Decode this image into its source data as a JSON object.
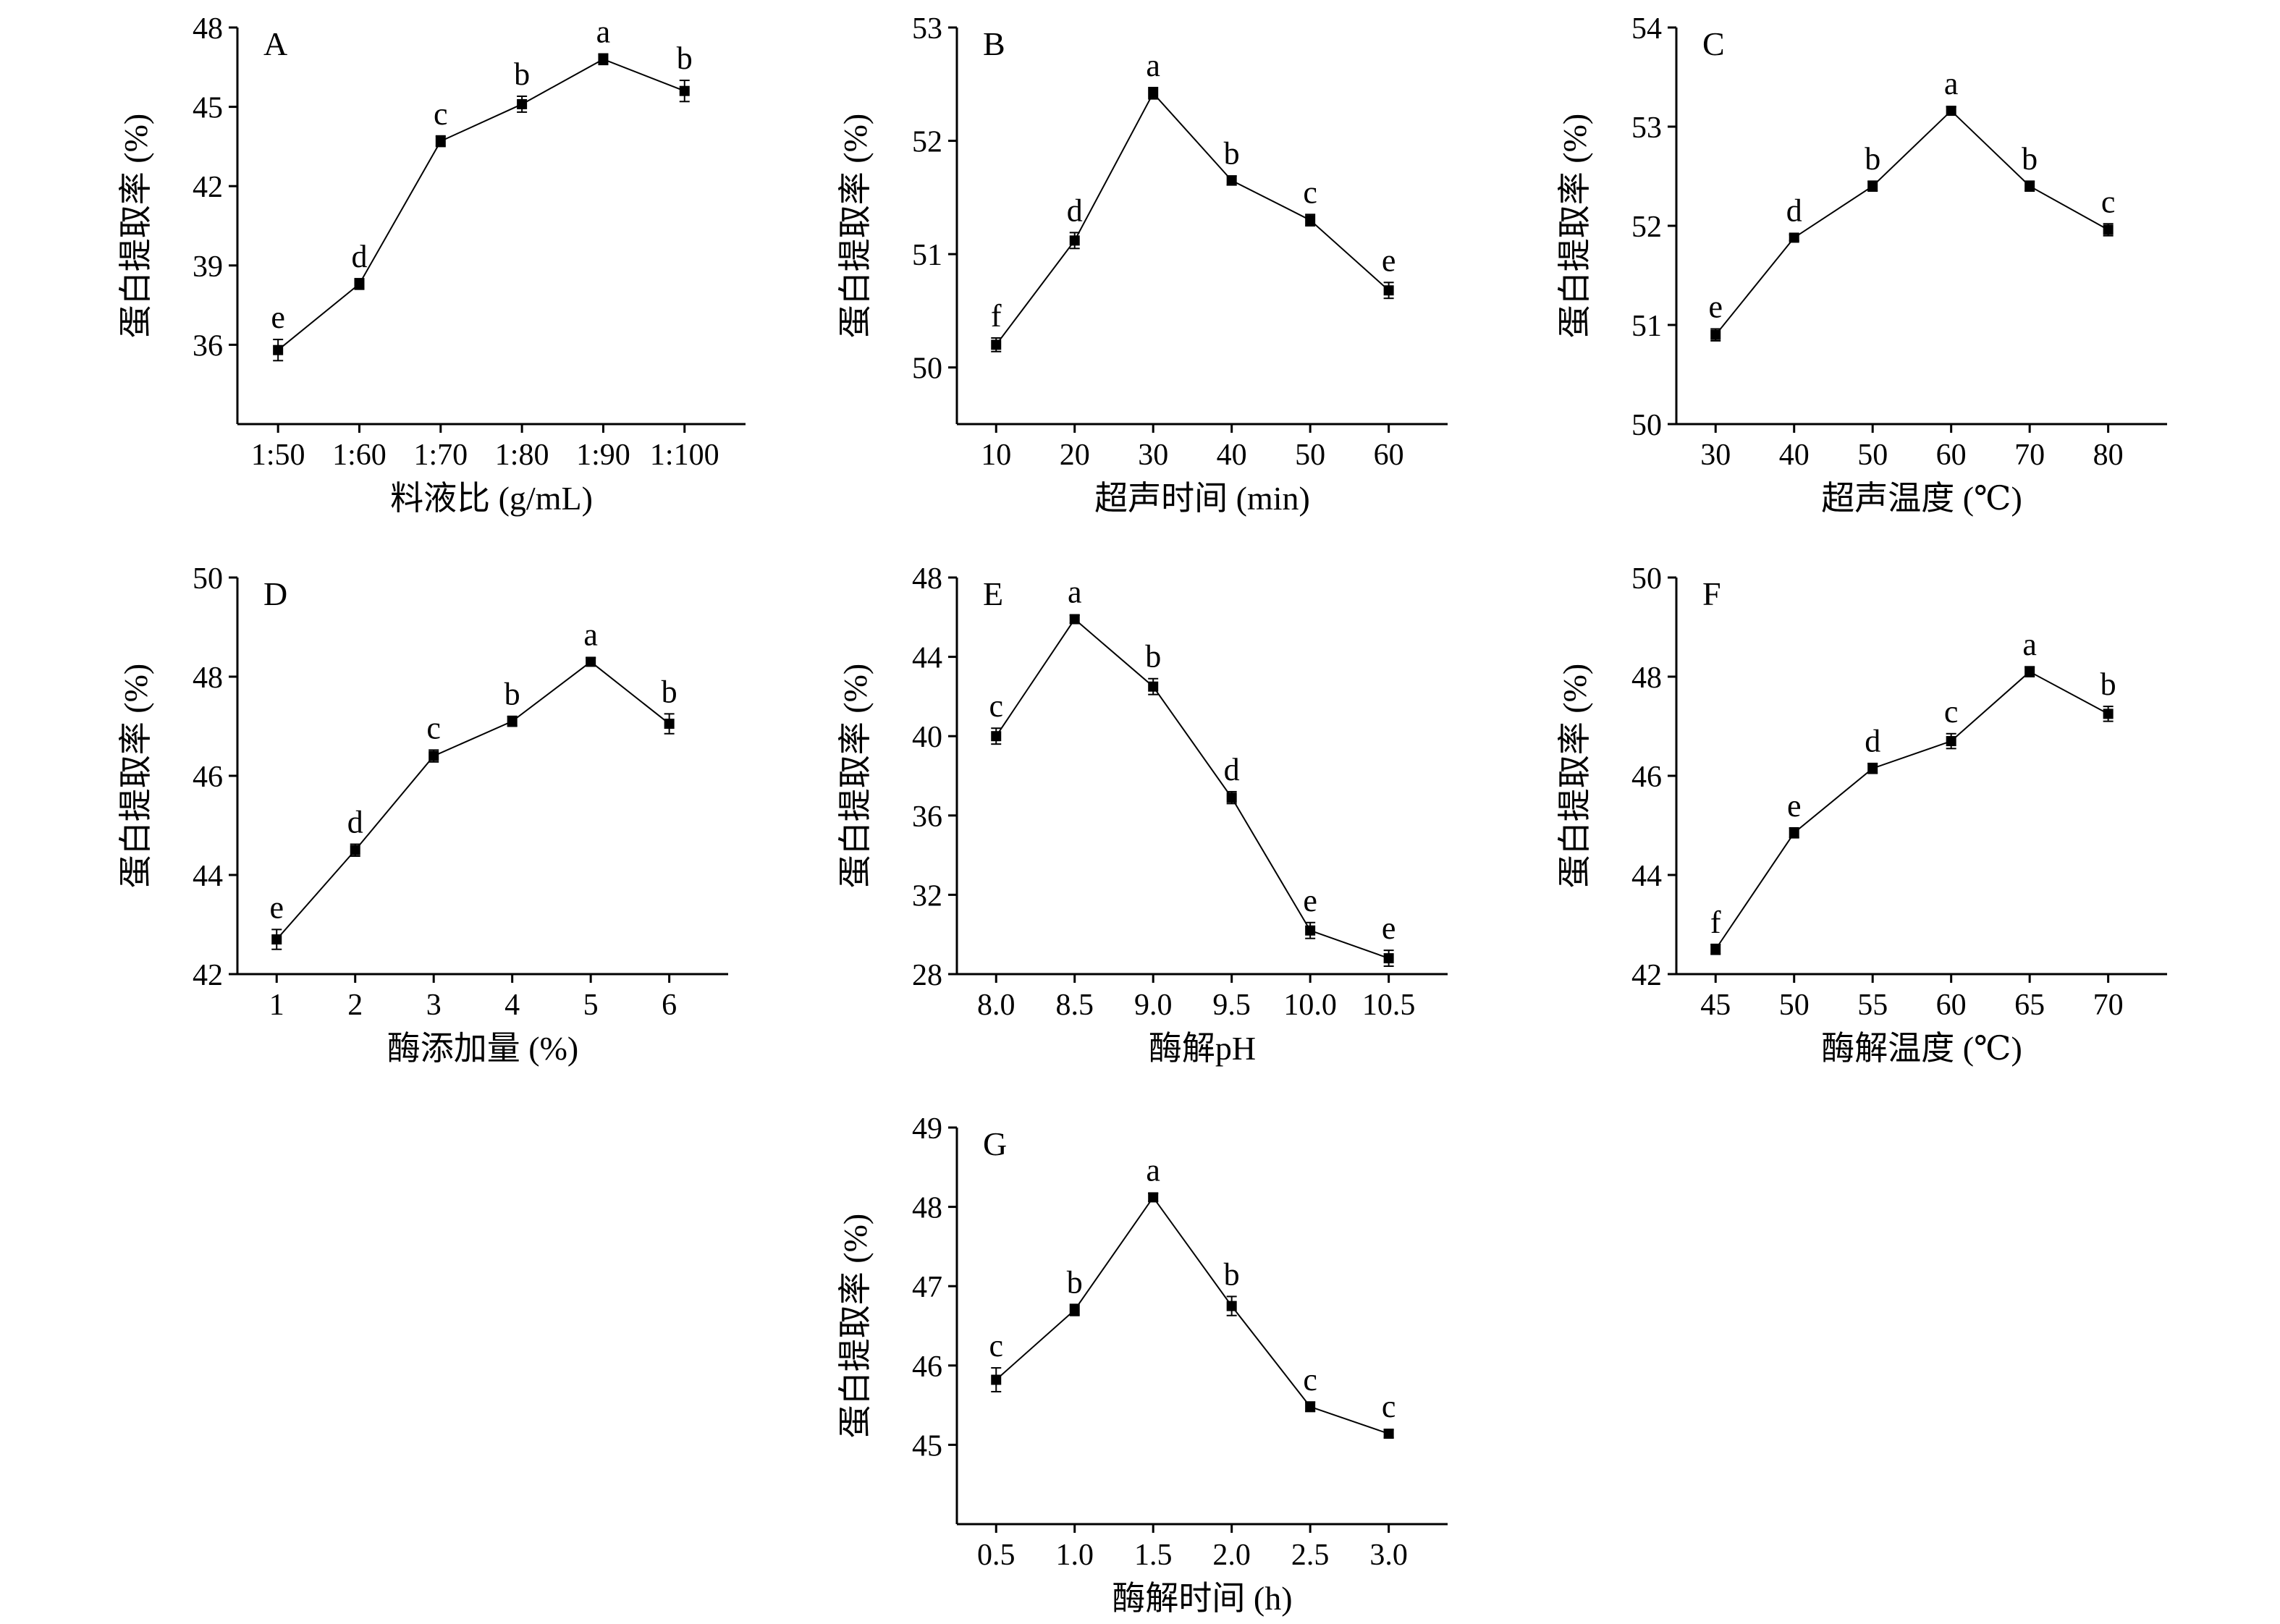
{
  "figure": {
    "ylabel": "蛋白提取率 (%)"
  },
  "chart_data": [
    {
      "type": "line",
      "panel": "A",
      "xlabel": "料液比 (g/mL)",
      "categories": [
        "1:50",
        "1:60",
        "1:70",
        "1:80",
        "1:90",
        "1:100"
      ],
      "values": [
        35.8,
        38.3,
        43.7,
        45.1,
        46.8,
        45.6
      ],
      "errors": [
        0.4,
        0.2,
        0.2,
        0.3,
        0.2,
        0.4
      ],
      "labels": [
        "e",
        "d",
        "c",
        "b",
        "a",
        "b"
      ],
      "ylim": [
        33,
        48
      ],
      "yticks": [
        36,
        39,
        42,
        45,
        48
      ],
      "grid": false
    },
    {
      "type": "line",
      "panel": "B",
      "xlabel": "超声时间 (min)",
      "categories": [
        "10",
        "20",
        "30",
        "40",
        "50",
        "60"
      ],
      "values": [
        50.2,
        51.12,
        52.42,
        51.65,
        51.3,
        50.68
      ],
      "errors": [
        0.06,
        0.07,
        0.05,
        0.04,
        0.05,
        0.07
      ],
      "labels": [
        "f",
        "d",
        "a",
        "b",
        "c",
        "e"
      ],
      "ylim": [
        49.5,
        53
      ],
      "yticks": [
        50,
        51,
        52,
        53
      ],
      "grid": false
    },
    {
      "type": "line",
      "panel": "C",
      "xlabel": "超声温度 (℃)",
      "categories": [
        "30",
        "40",
        "50",
        "60",
        "70",
        "80"
      ],
      "values": [
        50.9,
        51.88,
        52.4,
        53.16,
        52.4,
        51.96
      ],
      "errors": [
        0.06,
        0.03,
        0.05,
        0.04,
        0.05,
        0.06
      ],
      "labels": [
        "e",
        "d",
        "b",
        "a",
        "b",
        "c"
      ],
      "ylim": [
        50,
        54
      ],
      "yticks": [
        50,
        51,
        52,
        53,
        54
      ],
      "grid": false
    },
    {
      "type": "line",
      "panel": "D",
      "xlabel": "酶添加量 (%)",
      "categories": [
        "1",
        "2",
        "3",
        "4",
        "5",
        "6"
      ],
      "values": [
        42.7,
        44.5,
        46.4,
        47.1,
        48.3,
        47.05
      ],
      "errors": [
        0.2,
        0.12,
        0.12,
        0.1,
        0.08,
        0.2
      ],
      "labels": [
        "e",
        "d",
        "c",
        "b",
        "a",
        "b"
      ],
      "ylim": [
        42,
        50
      ],
      "yticks": [
        42,
        44,
        46,
        48,
        50
      ],
      "grid": false
    },
    {
      "type": "line",
      "panel": "E",
      "xlabel": "酶解pH",
      "categories": [
        "8.0",
        "8.5",
        "9.0",
        "9.5",
        "10.0",
        "10.5"
      ],
      "values": [
        40.0,
        45.9,
        42.5,
        36.9,
        30.2,
        28.8
      ],
      "errors": [
        0.4,
        0.2,
        0.4,
        0.3,
        0.4,
        0.4
      ],
      "labels": [
        "c",
        "a",
        "b",
        "d",
        "e",
        "e"
      ],
      "ylim": [
        28,
        48
      ],
      "yticks": [
        28,
        32,
        36,
        40,
        44,
        48
      ],
      "grid": false
    },
    {
      "type": "line",
      "panel": "F",
      "xlabel": "酶解温度 (℃)",
      "categories": [
        "45",
        "50",
        "55",
        "60",
        "65",
        "70"
      ],
      "values": [
        42.5,
        44.85,
        46.15,
        46.7,
        48.1,
        47.25
      ],
      "errors": [
        0.1,
        0.1,
        0.1,
        0.15,
        0.1,
        0.15
      ],
      "labels": [
        "f",
        "e",
        "d",
        "c",
        "a",
        "b"
      ],
      "ylim": [
        42,
        50
      ],
      "yticks": [
        42,
        44,
        46,
        48,
        50
      ],
      "grid": false
    },
    {
      "type": "line",
      "panel": "G",
      "xlabel": "酶解时间 (h)",
      "categories": [
        "0.5",
        "1.0",
        "1.5",
        "2.0",
        "2.5",
        "3.0"
      ],
      "values": [
        45.82,
        46.7,
        48.12,
        46.75,
        45.48,
        45.14
      ],
      "errors": [
        0.15,
        0.07,
        0.05,
        0.12,
        0.06,
        0.05
      ],
      "labels": [
        "c",
        "b",
        "a",
        "b",
        "c",
        "c"
      ],
      "ylim": [
        44,
        49
      ],
      "yticks": [
        45,
        46,
        47,
        48,
        49
      ],
      "grid": false
    }
  ]
}
